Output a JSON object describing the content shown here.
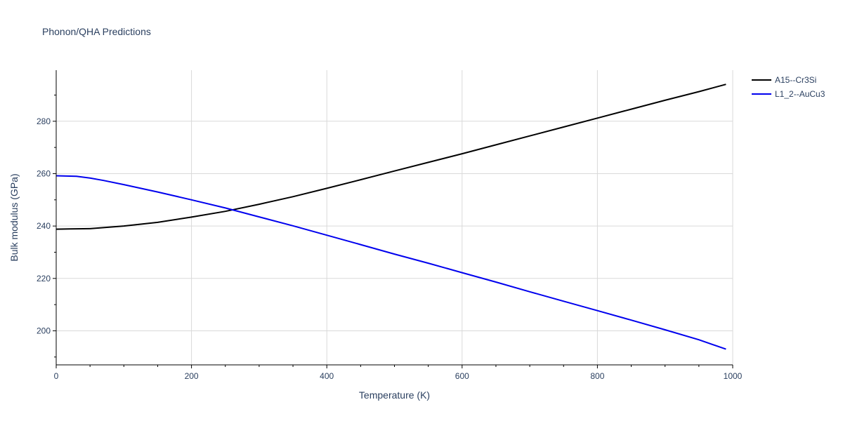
{
  "chart_data": {
    "type": "line",
    "title": "Phonon/QHA Predictions",
    "xlabel": "Temperature (K)",
    "ylabel": "Bulk modulus (GPa)",
    "xlim": [
      0,
      1000
    ],
    "ylim": [
      187,
      299.5
    ],
    "x_ticks": [
      0,
      200,
      400,
      600,
      800,
      1000
    ],
    "y_ticks": [
      200,
      220,
      240,
      260,
      280
    ],
    "x_minor_ticks": [
      50,
      100,
      150,
      250,
      300,
      350,
      450,
      500,
      550,
      650,
      700,
      750,
      850,
      900,
      950
    ],
    "y_minor_ticks": [
      190,
      210,
      230,
      250,
      270,
      290
    ],
    "grid": true,
    "legend_position": "right",
    "series": [
      {
        "name": "A15--Cr3Si",
        "color": "#000000",
        "x": [
          0,
          20,
          50,
          100,
          150,
          200,
          250,
          300,
          350,
          400,
          450,
          500,
          550,
          600,
          650,
          700,
          750,
          800,
          850,
          900,
          950,
          990
        ],
        "y": [
          238.8,
          238.9,
          239.0,
          240.0,
          241.4,
          243.4,
          245.6,
          248.3,
          251.2,
          254.4,
          257.7,
          261.0,
          264.3,
          267.6,
          271.0,
          274.4,
          277.8,
          281.2,
          284.6,
          288.0,
          291.3,
          294.1
        ]
      },
      {
        "name": "L1_2--AuCu3",
        "color": "#0000ee",
        "x": [
          0,
          30,
          50,
          70,
          100,
          150,
          200,
          250,
          300,
          350,
          400,
          450,
          500,
          550,
          600,
          650,
          700,
          750,
          800,
          850,
          900,
          950,
          990
        ],
        "y": [
          259.2,
          259.0,
          258.3,
          257.4,
          255.8,
          253.0,
          250.0,
          246.9,
          243.5,
          240.1,
          236.5,
          232.9,
          229.3,
          225.8,
          222.2,
          218.6,
          214.9,
          211.3,
          207.7,
          204.1,
          200.4,
          196.6,
          193.0
        ]
      }
    ]
  }
}
